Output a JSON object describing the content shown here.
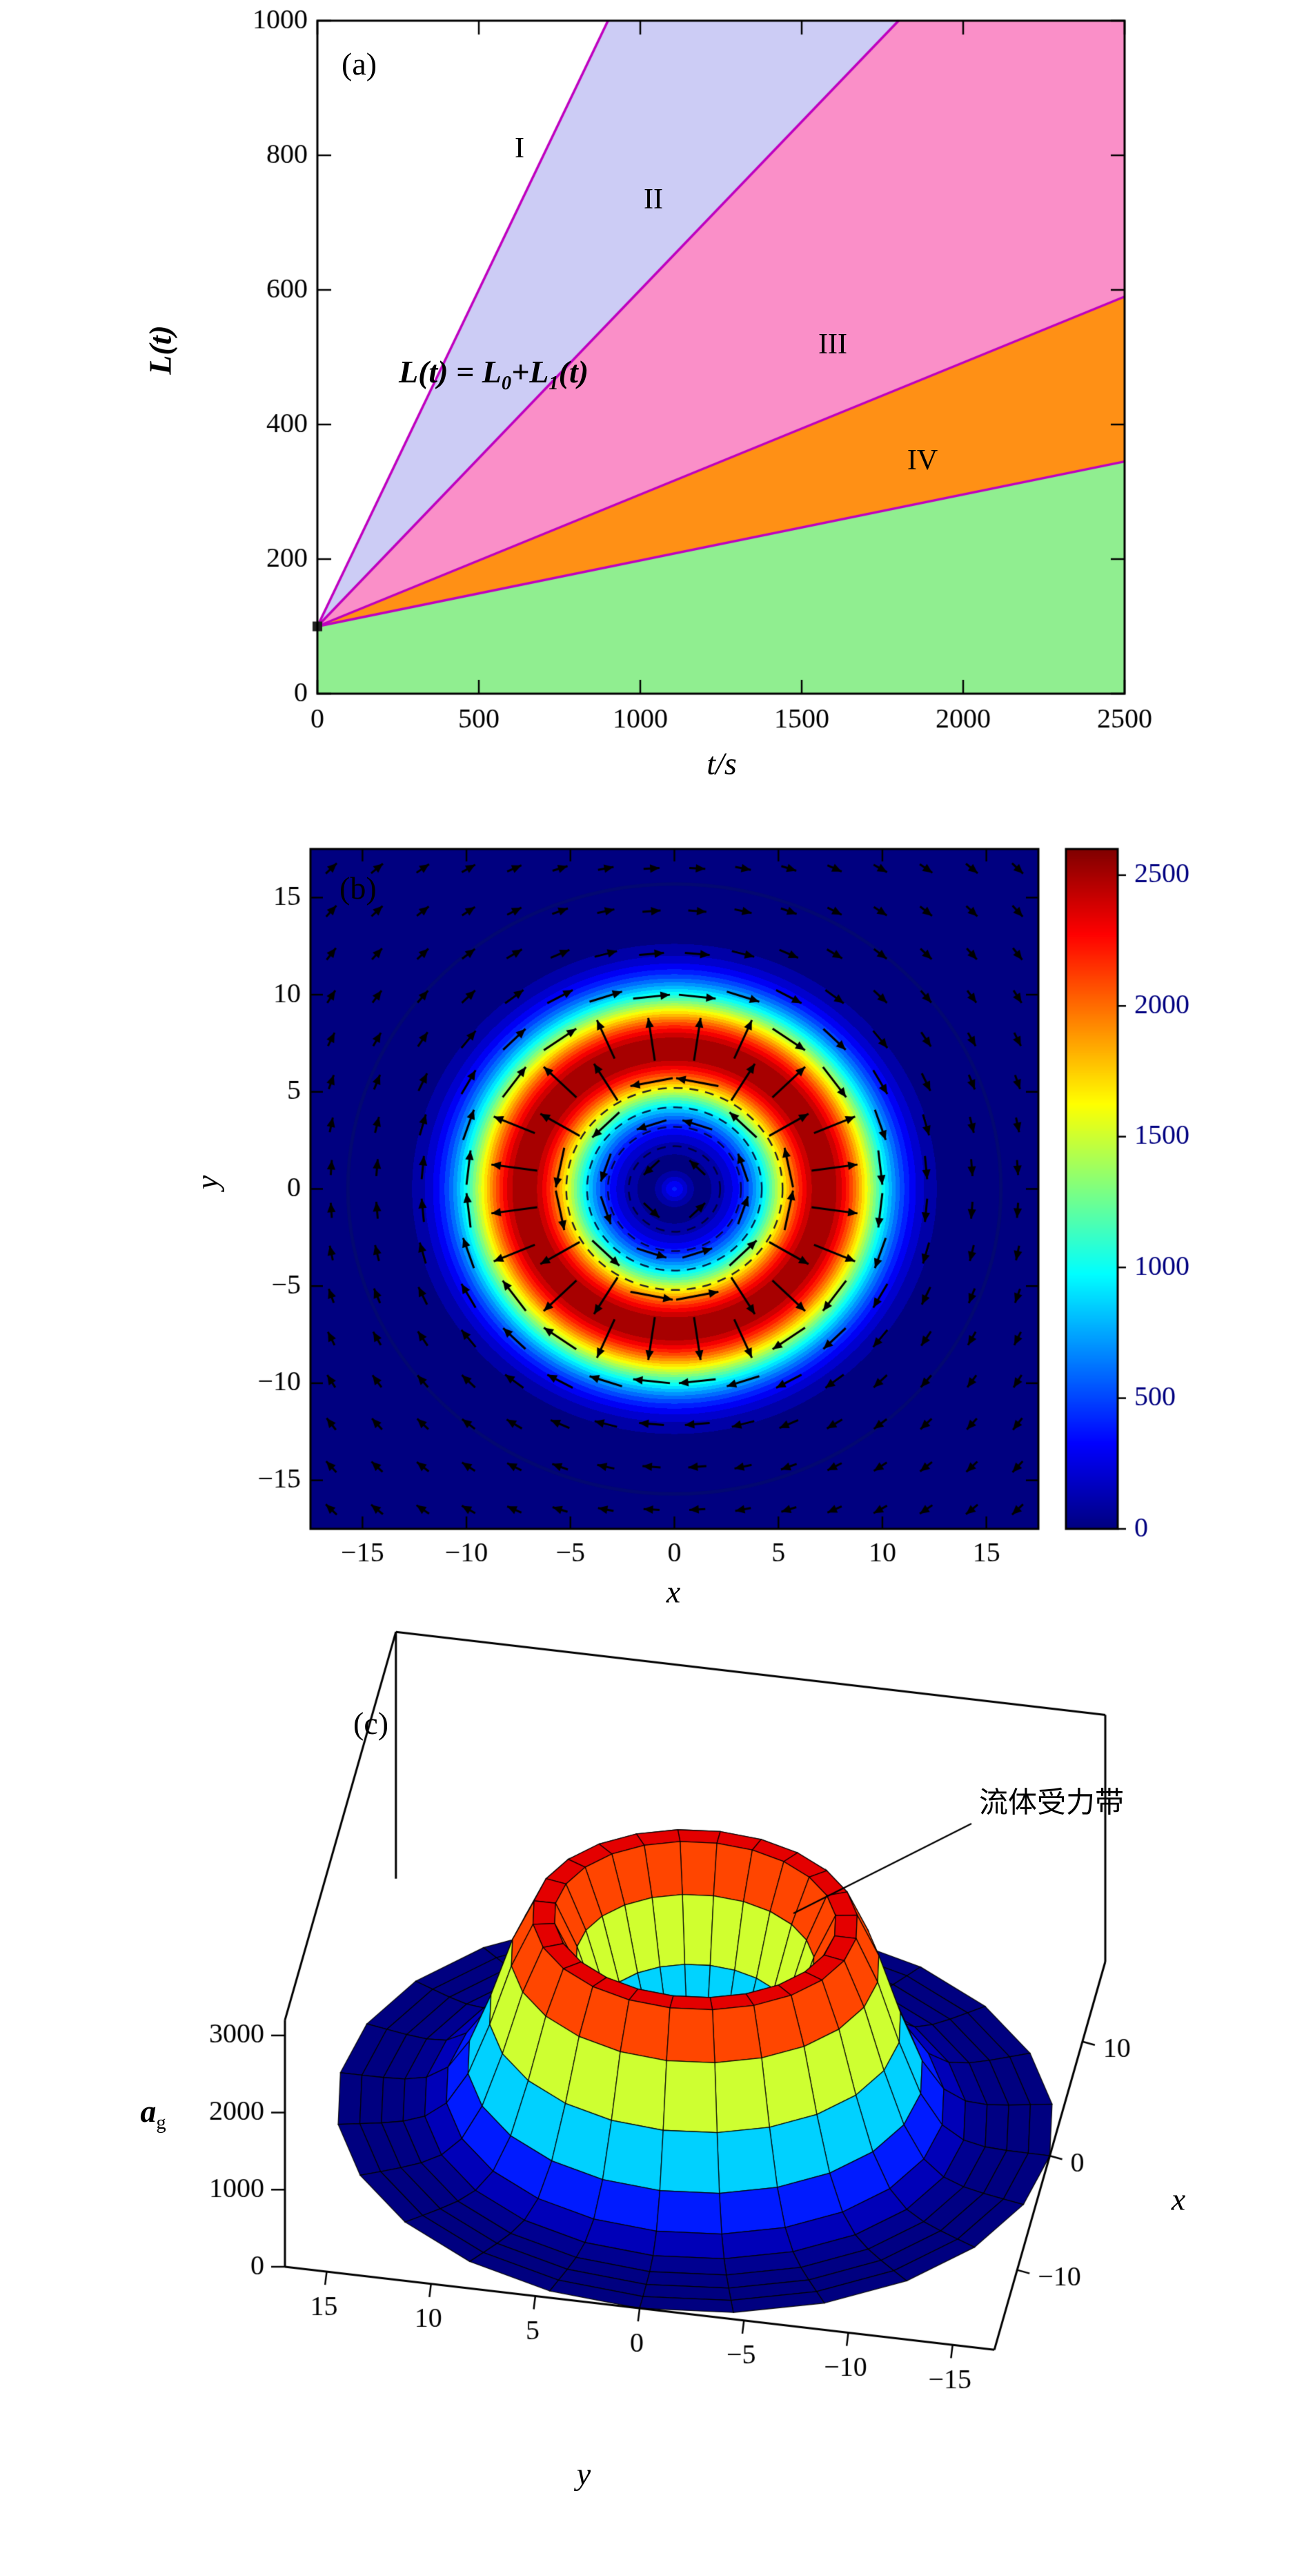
{
  "chart_data": [
    {
      "type": "area",
      "panel_label": "(a)",
      "xlabel": "t/s",
      "ylabel": "L(t)",
      "xlim": [
        0,
        2500
      ],
      "ylim": [
        0,
        1000
      ],
      "x_ticks": [
        0,
        500,
        1000,
        1500,
        2000,
        2500
      ],
      "y_ticks": [
        0,
        200,
        400,
        600,
        800,
        1000
      ],
      "origin": [
        0,
        100
      ],
      "lines": [
        {
          "name": "I",
          "slope": 1.0
        },
        {
          "name": "II",
          "slope": 0.5
        },
        {
          "name": "III",
          "slope": 0.196
        },
        {
          "name": "IV",
          "slope": 0.098
        }
      ],
      "line_color": "#bf00bf",
      "region_fills": [
        "#ccccf5",
        "#fa8fc8",
        "#ff9015",
        "#90ee90"
      ],
      "region_labels": [
        "I",
        "II",
        "III",
        "IV"
      ],
      "equation": {
        "p1": "L(t) = L",
        "sub0": "0",
        "p2": "+L",
        "sub1": "1",
        "p3": "(t)"
      }
    },
    {
      "type": "heatmap",
      "panel_label": "(b)",
      "xlabel": "x",
      "ylabel": "y",
      "xlim": [
        -17.5,
        17.5
      ],
      "ylim": [
        -17.5,
        17.5
      ],
      "ticks": [
        -15,
        -10,
        -5,
        0,
        5,
        10,
        15
      ],
      "colorbar": {
        "min": 0,
        "max": 2600,
        "ticks": [
          0,
          500,
          1000,
          1500,
          2000,
          2500
        ]
      },
      "colormap": "jet",
      "field": {
        "type": "radial-ring",
        "peak_radius": 7.2,
        "peak_value": 2600,
        "width": 3.0,
        "center_value": 400,
        "center_width": 0.7
      },
      "arrows": {
        "inner_direction": "ccw",
        "ring_direction": "radial-outward",
        "outer_direction": "cw",
        "ring_range": [
          5.8,
          9.3
        ]
      },
      "dashed_circle_radii": [
        2.2,
        3.2,
        4.2,
        5.2
      ]
    },
    {
      "type": "surface",
      "panel_label": "(c)",
      "xlabel": "x",
      "ylabel": "y",
      "zlabel_main": "a",
      "zlabel_sub": "g",
      "annotation": "流体受力带",
      "xlim": [
        -17,
        17
      ],
      "ylim": [
        -17,
        17
      ],
      "zlim": [
        0,
        3200
      ],
      "x_ticks": [
        -10,
        0,
        10
      ],
      "y_ticks": [
        15,
        10,
        5,
        0,
        -5,
        -10,
        -15
      ],
      "z_ticks": [
        0,
        1000,
        2000,
        3000
      ],
      "colormap": "jet",
      "surface": {
        "peak_radius": 7.2,
        "peak_value": 2600,
        "width": 3.0,
        "r_min": 0.5,
        "r_max": 17,
        "radial_segments": 16,
        "angular_segments": 24
      }
    }
  ]
}
